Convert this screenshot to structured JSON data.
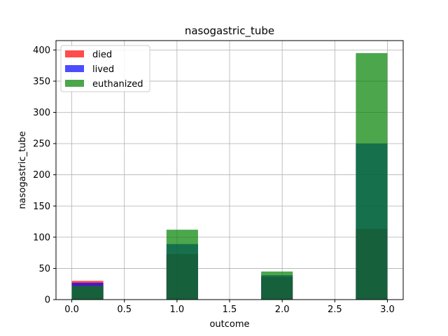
{
  "chart_data": {
    "type": "bar",
    "title": "nasogastric_tube",
    "xlabel": "outcome",
    "ylabel": "nasogastric_tube",
    "xlim": [
      -0.15,
      3.15
    ],
    "ylim": [
      0,
      415
    ],
    "xticks": [
      0.0,
      0.5,
      1.0,
      1.5,
      2.0,
      2.5,
      3.0
    ],
    "xtick_labels": [
      "0.0",
      "0.5",
      "1.0",
      "1.5",
      "2.0",
      "2.5",
      "3.0"
    ],
    "yticks": [
      0,
      50,
      100,
      150,
      200,
      250,
      300,
      350,
      400
    ],
    "ytick_labels": [
      "0",
      "50",
      "100",
      "150",
      "200",
      "250",
      "300",
      "350",
      "400"
    ],
    "grid": true,
    "legend_position": "top-left",
    "bin_edges": [
      [
        0.0,
        0.3
      ],
      [
        0.9,
        1.2
      ],
      [
        1.8,
        2.1
      ],
      [
        2.7,
        3.0
      ]
    ],
    "series": [
      {
        "name": "died",
        "color": "#ff0000",
        "values": [
          30,
          73,
          36,
          113
        ]
      },
      {
        "name": "lived",
        "color": "#0000ff",
        "values": [
          27,
          89,
          39,
          250
        ]
      },
      {
        "name": "euthanized",
        "color": "#008000",
        "values": [
          22,
          112,
          45,
          395
        ]
      }
    ]
  }
}
